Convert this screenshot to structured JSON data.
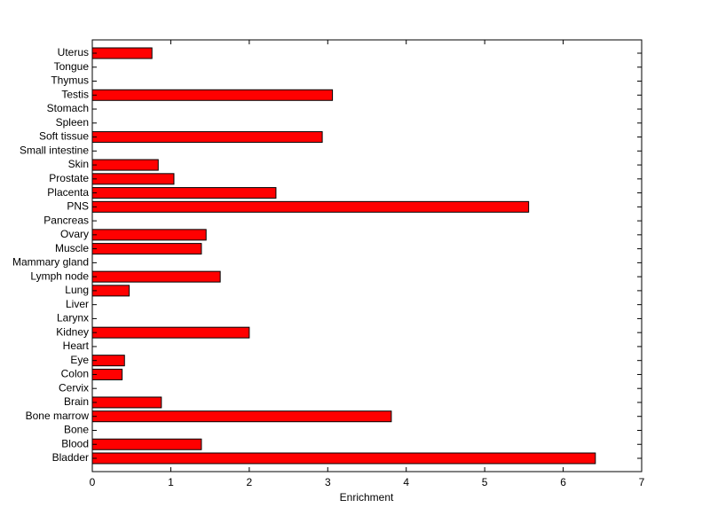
{
  "chart_data": {
    "type": "bar",
    "orientation": "horizontal",
    "xlabel": "Enrichment",
    "categories": [
      "Bladder",
      "Blood",
      "Bone",
      "Bone marrow",
      "Brain",
      "Cervix",
      "Colon",
      "Eye",
      "Heart",
      "Kidney",
      "Larynx",
      "Liver",
      "Lung",
      "Lymph node",
      "Mammary gland",
      "Muscle",
      "Ovary",
      "Pancreas",
      "PNS",
      "Placenta",
      "Prostate",
      "Skin",
      "Small intestine",
      "Soft tissue",
      "Spleen",
      "Stomach",
      "Testis",
      "Thymus",
      "Tongue",
      "Uterus"
    ],
    "values": [
      6.41,
      1.39,
      0,
      3.81,
      0.88,
      0,
      0.38,
      0.41,
      0,
      2.0,
      0,
      0,
      0.47,
      1.63,
      0,
      1.39,
      1.45,
      0,
      5.56,
      2.34,
      1.04,
      0.84,
      0,
      2.93,
      0,
      0,
      3.06,
      0,
      0,
      0.76
    ],
    "color": "#ff0000",
    "xlim": [
      0,
      7
    ],
    "xticks": [
      0,
      1,
      2,
      3,
      4,
      5,
      6,
      7
    ]
  }
}
